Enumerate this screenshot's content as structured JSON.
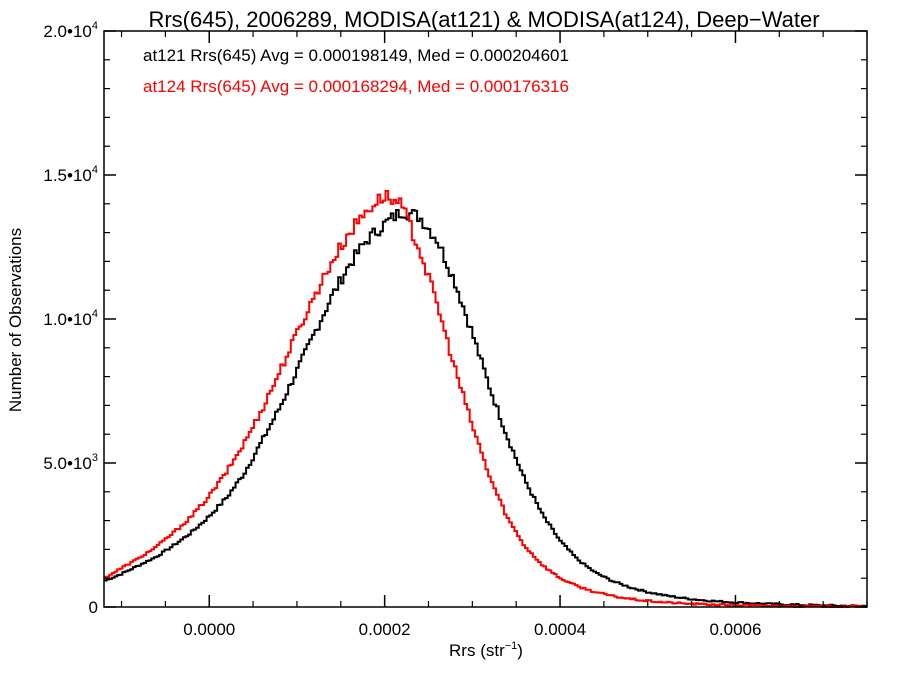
{
  "chart_data": {
    "type": "line",
    "style": "step-histogram",
    "title": "Rrs(645), 2006289, MODISA(at121) & MODISA(at124), Deep−Water",
    "xlabel": "Rrs (str",
    "xlabel_sup": "−1",
    "xlabel_end": ")",
    "ylabel": "Number of Observations",
    "xlim": [
      -0.00012,
      0.00075
    ],
    "ylim": [
      0,
      20000
    ],
    "grid": false,
    "x_ticks": [
      {
        "value": 0.0,
        "label": "0.0000"
      },
      {
        "value": 0.0002,
        "label": "0.0002"
      },
      {
        "value": 0.0004,
        "label": "0.0004"
      },
      {
        "value": 0.0006,
        "label": "0.0006"
      }
    ],
    "y_ticks": [
      {
        "value": 0,
        "label": "0",
        "sup": ""
      },
      {
        "value": 5000,
        "label": "5.0•10",
        "sup": "3"
      },
      {
        "value": 10000,
        "label": "1.0•10",
        "sup": "4"
      },
      {
        "value": 15000,
        "label": "1.5•10",
        "sup": "4"
      },
      {
        "value": 20000,
        "label": "2.0•10",
        "sup": "4"
      }
    ],
    "x_minor_per_major": 4,
    "y_minor_per_major": 5,
    "annotations": [
      {
        "text": "at121 Rrs(645) Avg = 0.000198149, Med = 0.000204601",
        "color": "#000000"
      },
      {
        "text": "at124 Rrs(645) Avg = 0.000168294, Med = 0.000176316",
        "color": "#ff0000"
      }
    ],
    "series": [
      {
        "color": "#000000",
        "points": [
          [
            -0.00012,
            900
          ],
          [
            -0.0001,
            1150
          ],
          [
            -8e-05,
            1450
          ],
          [
            -6e-05,
            1750
          ],
          [
            -4e-05,
            2150
          ],
          [
            -2e-05,
            2600
          ],
          [
            0.0,
            3150
          ],
          [
            2e-05,
            3800
          ],
          [
            4e-05,
            4650
          ],
          [
            6e-05,
            5750
          ],
          [
            8e-05,
            6900
          ],
          [
            0.0001,
            8200
          ],
          [
            0.00012,
            9500
          ],
          [
            0.00014,
            10800
          ],
          [
            0.00016,
            11900
          ],
          [
            0.00018,
            12750
          ],
          [
            0.0002,
            13300
          ],
          [
            0.00022,
            13750
          ],
          [
            0.00024,
            13550
          ],
          [
            0.00026,
            12750
          ],
          [
            0.00028,
            11300
          ],
          [
            0.0003,
            9500
          ],
          [
            0.00032,
            7600
          ],
          [
            0.00034,
            5900
          ],
          [
            0.00036,
            4400
          ],
          [
            0.00038,
            3200
          ],
          [
            0.0004,
            2300
          ],
          [
            0.00042,
            1650
          ],
          [
            0.00044,
            1200
          ],
          [
            0.00046,
            900
          ],
          [
            0.00048,
            680
          ],
          [
            0.0005,
            520
          ],
          [
            0.00052,
            400
          ],
          [
            0.00054,
            310
          ],
          [
            0.00056,
            245
          ],
          [
            0.00058,
            195
          ],
          [
            0.0006,
            160
          ],
          [
            0.00062,
            130
          ],
          [
            0.00064,
            105
          ],
          [
            0.00066,
            85
          ],
          [
            0.00068,
            68
          ],
          [
            0.0007,
            55
          ],
          [
            0.00072,
            44
          ],
          [
            0.00075,
            35
          ]
        ]
      },
      {
        "color": "#ff0000",
        "points": [
          [
            -0.00012,
            1000
          ],
          [
            -0.0001,
            1350
          ],
          [
            -8e-05,
            1700
          ],
          [
            -6e-05,
            2100
          ],
          [
            -4e-05,
            2600
          ],
          [
            -2e-05,
            3150
          ],
          [
            0.0,
            3850
          ],
          [
            2e-05,
            4700
          ],
          [
            4e-05,
            5700
          ],
          [
            6e-05,
            6850
          ],
          [
            8e-05,
            8150
          ],
          [
            0.0001,
            9500
          ],
          [
            0.00012,
            10800
          ],
          [
            0.00014,
            12000
          ],
          [
            0.00016,
            13000
          ],
          [
            0.00018,
            13800
          ],
          [
            0.0002,
            14300
          ],
          [
            0.00022,
            13900
          ],
          [
            0.00024,
            12400
          ],
          [
            0.00026,
            10500
          ],
          [
            0.00028,
            8300
          ],
          [
            0.0003,
            6300
          ],
          [
            0.00032,
            4500
          ],
          [
            0.00034,
            3100
          ],
          [
            0.00036,
            2100
          ],
          [
            0.00038,
            1450
          ],
          [
            0.0004,
            1000
          ],
          [
            0.00042,
            720
          ],
          [
            0.00044,
            520
          ],
          [
            0.00046,
            380
          ],
          [
            0.00048,
            280
          ],
          [
            0.0005,
            210
          ],
          [
            0.00052,
            160
          ],
          [
            0.00054,
            125
          ],
          [
            0.00056,
            100
          ],
          [
            0.00058,
            80
          ],
          [
            0.0006,
            65
          ],
          [
            0.00062,
            52
          ],
          [
            0.00064,
            42
          ],
          [
            0.00066,
            34
          ],
          [
            0.00068,
            27
          ],
          [
            0.0007,
            22
          ],
          [
            0.00072,
            18
          ],
          [
            0.00075,
            14
          ]
        ]
      }
    ]
  }
}
